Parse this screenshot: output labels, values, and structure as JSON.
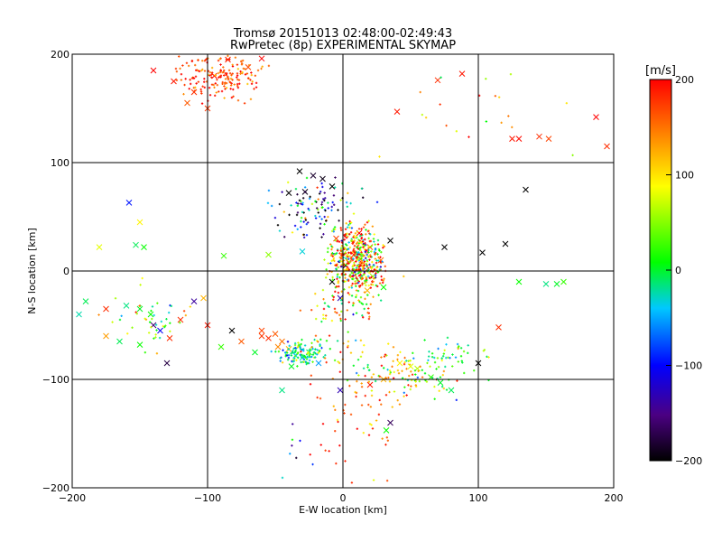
{
  "title": {
    "line1": "Tromsø 20151013 02:48:00-02:49:43",
    "line2": "RwPretec (8p) EXPERIMENTAL SKYMAP"
  },
  "chart_data": {
    "type": "scatter",
    "xlabel": "E-W location [km]",
    "ylabel": "N-S location [km]",
    "xlim": [
      -200,
      200
    ],
    "ylim": [
      -200,
      200
    ],
    "xticks": [
      -200,
      -100,
      0,
      100,
      200
    ],
    "yticks": [
      -200,
      -100,
      0,
      100,
      200
    ],
    "grid": true,
    "marker_legend": "small dots and x markers",
    "colorbar": {
      "label": "[m/s]",
      "min": -200,
      "max": 200,
      "ticks": [
        200,
        100,
        0,
        -100,
        -200
      ],
      "colormap": [
        "#000000",
        "#4b0082",
        "#0000ff",
        "#00c8ff",
        "#00ff00",
        "#ffff00",
        "#ff8000",
        "#ff0000"
      ]
    },
    "series": [
      {
        "marker": "x",
        "points": [
          {
            "x": -140,
            "y": 185,
            "v": 200
          },
          {
            "x": -125,
            "y": 175,
            "v": 190
          },
          {
            "x": -110,
            "y": 165,
            "v": 180
          },
          {
            "x": -95,
            "y": 180,
            "v": 195
          },
          {
            "x": -85,
            "y": 195,
            "v": 185
          },
          {
            "x": -70,
            "y": 188,
            "v": 170
          },
          {
            "x": -60,
            "y": 196,
            "v": 200
          },
          {
            "x": -100,
            "y": 150,
            "v": 175
          },
          {
            "x": -115,
            "y": 155,
            "v": 160
          },
          {
            "x": 40,
            "y": 147,
            "v": 190
          },
          {
            "x": 70,
            "y": 176,
            "v": 180
          },
          {
            "x": 88,
            "y": 182,
            "v": 190
          },
          {
            "x": 125,
            "y": 122,
            "v": 190
          },
          {
            "x": 130,
            "y": 122,
            "v": 195
          },
          {
            "x": 145,
            "y": 124,
            "v": 180
          },
          {
            "x": 152,
            "y": 122,
            "v": 170
          },
          {
            "x": 187,
            "y": 142,
            "v": 200
          },
          {
            "x": 195,
            "y": 115,
            "v": 180
          },
          {
            "x": -32,
            "y": 92,
            "v": -200
          },
          {
            "x": -22,
            "y": 88,
            "v": -180
          },
          {
            "x": -15,
            "y": 85,
            "v": -190
          },
          {
            "x": -8,
            "y": 78,
            "v": -200
          },
          {
            "x": -40,
            "y": 72,
            "v": -200
          },
          {
            "x": -28,
            "y": 73,
            "v": -190
          },
          {
            "x": 135,
            "y": 75,
            "v": -200
          },
          {
            "x": 120,
            "y": 25,
            "v": -200
          },
          {
            "x": 103,
            "y": 17,
            "v": -200
          },
          {
            "x": -158,
            "y": 63,
            "v": -80
          },
          {
            "x": -150,
            "y": 45,
            "v": 90
          },
          {
            "x": -153,
            "y": 24,
            "v": 10
          },
          {
            "x": -147,
            "y": 22,
            "v": 30
          },
          {
            "x": -180,
            "y": 22,
            "v": 80
          },
          {
            "x": -88,
            "y": 14,
            "v": 40
          },
          {
            "x": -55,
            "y": 15,
            "v": 60
          },
          {
            "x": -30,
            "y": 18,
            "v": -20
          },
          {
            "x": 75,
            "y": 22,
            "v": -200
          },
          {
            "x": 8,
            "y": 15,
            "v": 180
          },
          {
            "x": 20,
            "y": 22,
            "v": 160
          },
          {
            "x": 28,
            "y": 10,
            "v": 150
          },
          {
            "x": -5,
            "y": 30,
            "v": 170
          },
          {
            "x": 12,
            "y": 35,
            "v": 200
          },
          {
            "x": 35,
            "y": 28,
            "v": -200
          },
          {
            "x": -8,
            "y": -10,
            "v": -200
          },
          {
            "x": 2,
            "y": 5,
            "v": -190
          },
          {
            "x": 18,
            "y": -18,
            "v": 120
          },
          {
            "x": 22,
            "y": -5,
            "v": 60
          },
          {
            "x": 30,
            "y": -15,
            "v": 30
          },
          {
            "x": -2,
            "y": -25,
            "v": -120
          },
          {
            "x": -190,
            "y": -28,
            "v": 10
          },
          {
            "x": -195,
            "y": -40,
            "v": -10
          },
          {
            "x": -175,
            "y": -35,
            "v": 180
          },
          {
            "x": -160,
            "y": -32,
            "v": 0
          },
          {
            "x": -150,
            "y": -35,
            "v": 20
          },
          {
            "x": -142,
            "y": -40,
            "v": 30
          },
          {
            "x": -175,
            "y": -60,
            "v": 130
          },
          {
            "x": -165,
            "y": -65,
            "v": 10
          },
          {
            "x": -140,
            "y": -50,
            "v": -150
          },
          {
            "x": -135,
            "y": -55,
            "v": -90
          },
          {
            "x": -120,
            "y": -45,
            "v": 180
          },
          {
            "x": -100,
            "y": -50,
            "v": 190
          },
          {
            "x": -103,
            "y": -25,
            "v": 120
          },
          {
            "x": -110,
            "y": -28,
            "v": -130
          },
          {
            "x": -82,
            "y": -55,
            "v": -200
          },
          {
            "x": -75,
            "y": -65,
            "v": 160
          },
          {
            "x": -130,
            "y": -85,
            "v": -170
          },
          {
            "x": -128,
            "y": -62,
            "v": 180
          },
          {
            "x": -150,
            "y": -68,
            "v": 30
          },
          {
            "x": -90,
            "y": -70,
            "v": 40
          },
          {
            "x": -65,
            "y": -75,
            "v": 20
          },
          {
            "x": -60,
            "y": -55,
            "v": 170
          },
          {
            "x": -55,
            "y": -62,
            "v": 180
          },
          {
            "x": -50,
            "y": -58,
            "v": 160
          },
          {
            "x": -45,
            "y": -65,
            "v": 150
          },
          {
            "x": -48,
            "y": -70,
            "v": 140
          },
          {
            "x": -40,
            "y": -72,
            "v": 120
          },
          {
            "x": -35,
            "y": -78,
            "v": -30
          },
          {
            "x": -30,
            "y": -80,
            "v": -20
          },
          {
            "x": -25,
            "y": -75,
            "v": 10
          },
          {
            "x": -18,
            "y": -85,
            "v": -40
          },
          {
            "x": -38,
            "y": -88,
            "v": 20
          },
          {
            "x": -60,
            "y": -60,
            "v": 175
          },
          {
            "x": 130,
            "y": -10,
            "v": 30
          },
          {
            "x": 150,
            "y": -12,
            "v": 0
          },
          {
            "x": 158,
            "y": -12,
            "v": 20
          },
          {
            "x": 163,
            "y": -10,
            "v": 40
          },
          {
            "x": 115,
            "y": -52,
            "v": 180
          },
          {
            "x": 100,
            "y": -85,
            "v": -200
          },
          {
            "x": 55,
            "y": -90,
            "v": 70
          },
          {
            "x": 65,
            "y": -98,
            "v": 40
          },
          {
            "x": 72,
            "y": -103,
            "v": 20
          },
          {
            "x": 80,
            "y": -110,
            "v": 10
          },
          {
            "x": 50,
            "y": -88,
            "v": 80
          },
          {
            "x": 42,
            "y": -85,
            "v": 90
          },
          {
            "x": 35,
            "y": -140,
            "v": -160
          },
          {
            "x": 32,
            "y": -147,
            "v": 30
          },
          {
            "x": 20,
            "y": -105,
            "v": 190
          },
          {
            "x": 30,
            "y": -100,
            "v": 120
          },
          {
            "x": -2,
            "y": -110,
            "v": -120
          },
          {
            "x": -45,
            "y": -110,
            "v": 0
          }
        ]
      }
    ]
  }
}
